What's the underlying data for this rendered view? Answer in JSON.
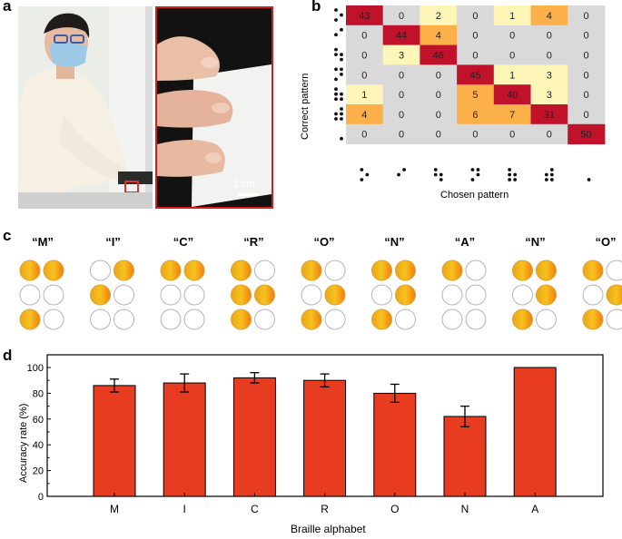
{
  "panels": {
    "a": "a",
    "b": "b",
    "c": "c",
    "d": "d"
  },
  "photo": {
    "scale_label": "1 cm"
  },
  "confusion": {
    "ylabel": "Correct pattern",
    "xlabel": "Chosen pattern",
    "patterns": [
      [
        1,
        3,
        5
      ],
      [
        2,
        4
      ],
      [
        1,
        2,
        5,
        6
      ],
      [
        1,
        3,
        4,
        5
      ],
      [
        1,
        2,
        3,
        5,
        6
      ],
      [
        2,
        3,
        4,
        5,
        6
      ],
      [
        6
      ]
    ],
    "matrix": [
      [
        43,
        0,
        2,
        0,
        1,
        4,
        0
      ],
      [
        0,
        44,
        4,
        0,
        0,
        0,
        0
      ],
      [
        0,
        3,
        46,
        0,
        0,
        0,
        0
      ],
      [
        0,
        0,
        0,
        45,
        1,
        3,
        0
      ],
      [
        1,
        0,
        0,
        5,
        40,
        3,
        0
      ],
      [
        4,
        0,
        0,
        6,
        7,
        31,
        0
      ],
      [
        0,
        0,
        0,
        0,
        0,
        0,
        50
      ]
    ],
    "colors": {
      "zero": "#d9d9d9",
      "low": "#fdf6b8",
      "mid": "#fcb04a",
      "high": "#c1122c"
    }
  },
  "braille": {
    "letters": [
      "“M”",
      "“I”",
      "“C”",
      "“R”",
      "“O”",
      "“N”",
      "“A”",
      "“N”",
      "“O”"
    ],
    "dots": [
      [
        1,
        1,
        0,
        0,
        1,
        0
      ],
      [
        0,
        1,
        1,
        0,
        0,
        0
      ],
      [
        1,
        1,
        0,
        0,
        0,
        0
      ],
      [
        1,
        0,
        1,
        1,
        1,
        0
      ],
      [
        1,
        0,
        0,
        1,
        1,
        0
      ],
      [
        1,
        1,
        0,
        1,
        1,
        0
      ],
      [
        1,
        0,
        0,
        0,
        0,
        0
      ],
      [
        1,
        1,
        0,
        1,
        1,
        0
      ],
      [
        1,
        0,
        0,
        1,
        1,
        0
      ]
    ]
  },
  "chart_data": {
    "type": "bar",
    "categories": [
      "M",
      "I",
      "C",
      "R",
      "O",
      "N",
      "A"
    ],
    "values": [
      86,
      88,
      92,
      90,
      80,
      62,
      100
    ],
    "errors": [
      5,
      7,
      4,
      5,
      7,
      8,
      0
    ],
    "xlabel": "Braille alphabet",
    "ylabel": "Accuracy rate (%)",
    "ylim": [
      0,
      100
    ],
    "yticks": [
      0,
      20,
      40,
      60,
      80,
      100
    ],
    "bar_color": "#e83c20"
  }
}
